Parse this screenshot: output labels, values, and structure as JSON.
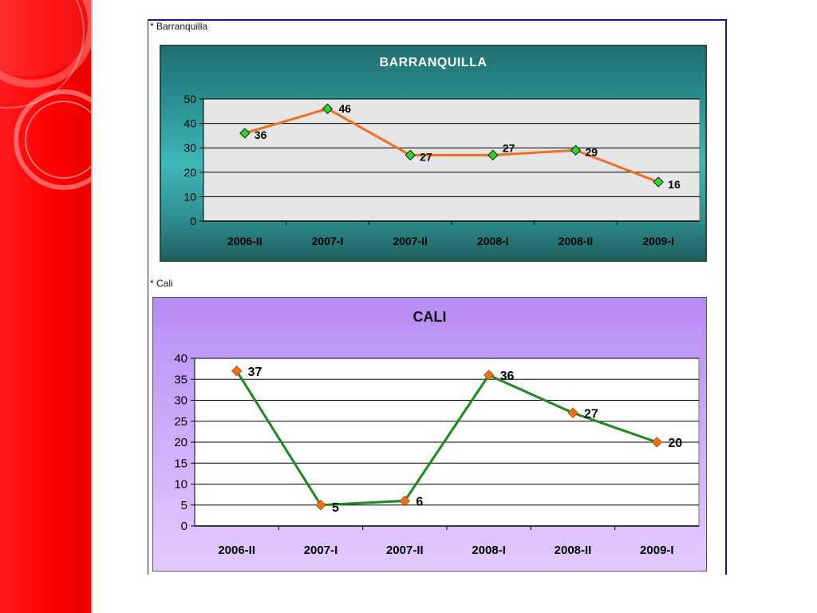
{
  "captions": {
    "barranquilla": "* Barranquilla",
    "cali": "* Cali"
  },
  "colors": {
    "sidebar": "#ff0000",
    "frame_border": "#1a1a8c",
    "barranquilla_line": "#f07020",
    "barranquilla_marker": "#22dd22",
    "cali_line": "#1a8a1a",
    "cali_marker": "#f07020"
  },
  "chart_data": [
    {
      "type": "line",
      "title": "BARRANQUILLA",
      "categories": [
        "2006-II",
        "2007-I",
        "2007-II",
        "2008-I",
        "2008-II",
        "2009-I"
      ],
      "series": [
        {
          "values": [
            36,
            46,
            27,
            27,
            29,
            16
          ]
        }
      ],
      "ylim": [
        0,
        50
      ],
      "yticks": [
        0,
        10,
        20,
        30,
        40,
        50
      ],
      "grid": true,
      "legend": "none",
      "data_labels": true
    },
    {
      "type": "line",
      "title": "CALI",
      "categories": [
        "2006-II",
        "2007-I",
        "2007-II",
        "2008-I",
        "2008-II",
        "2009-I"
      ],
      "series": [
        {
          "values": [
            37,
            5,
            6,
            36,
            27,
            20
          ]
        }
      ],
      "ylim": [
        0,
        40
      ],
      "yticks": [
        0,
        5,
        10,
        15,
        20,
        25,
        30,
        35,
        40
      ],
      "grid": true,
      "legend": "none",
      "data_labels": true
    }
  ]
}
